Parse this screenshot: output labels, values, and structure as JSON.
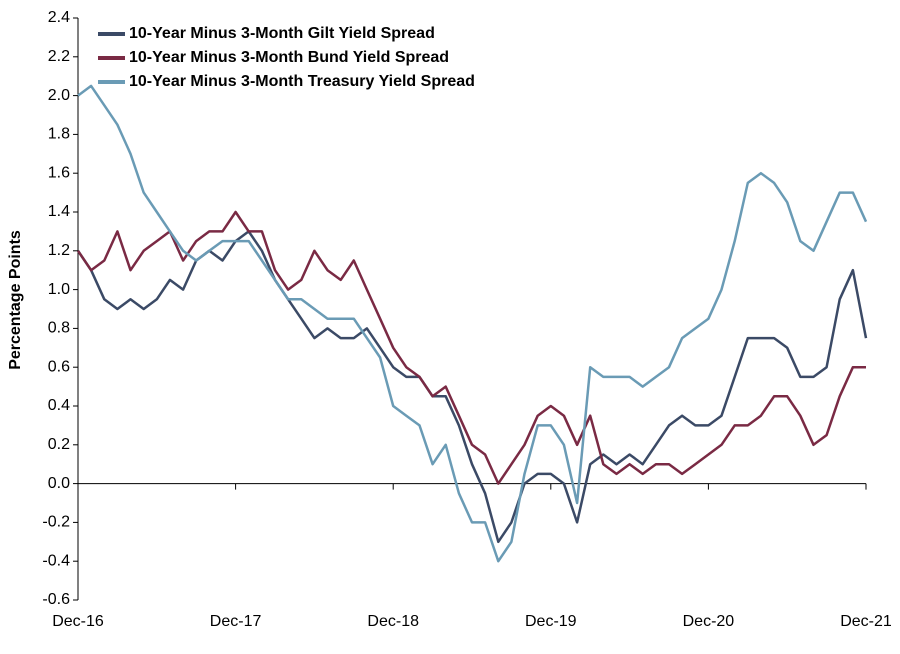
{
  "chart_data": {
    "type": "line",
    "ylabel": "Percentage Points",
    "x": [
      "2016-12",
      "2017-01",
      "2017-02",
      "2017-03",
      "2017-04",
      "2017-05",
      "2017-06",
      "2017-07",
      "2017-08",
      "2017-09",
      "2017-10",
      "2017-11",
      "2017-12",
      "2018-01",
      "2018-02",
      "2018-03",
      "2018-04",
      "2018-05",
      "2018-06",
      "2018-07",
      "2018-08",
      "2018-09",
      "2018-10",
      "2018-11",
      "2018-12",
      "2019-01",
      "2019-02",
      "2019-03",
      "2019-04",
      "2019-05",
      "2019-06",
      "2019-07",
      "2019-08",
      "2019-09",
      "2019-10",
      "2019-11",
      "2019-12",
      "2020-01",
      "2020-02",
      "2020-03",
      "2020-04",
      "2020-05",
      "2020-06",
      "2020-07",
      "2020-08",
      "2020-09",
      "2020-10",
      "2020-11",
      "2020-12",
      "2021-01",
      "2021-02",
      "2021-03",
      "2021-04",
      "2021-05",
      "2021-06",
      "2021-07",
      "2021-08",
      "2021-09",
      "2021-10",
      "2021-11",
      "2021-12"
    ],
    "series": [
      {
        "name": "10-Year Minus 3-Month Gilt Yield Spread",
        "color": "#3b4a66",
        "values": [
          1.2,
          1.1,
          0.95,
          0.9,
          0.95,
          0.9,
          0.95,
          1.05,
          1.0,
          1.15,
          1.2,
          1.15,
          1.25,
          1.3,
          1.2,
          1.05,
          0.95,
          0.85,
          0.75,
          0.8,
          0.75,
          0.75,
          0.8,
          0.7,
          0.6,
          0.55,
          0.55,
          0.45,
          0.45,
          0.3,
          0.1,
          -0.05,
          -0.3,
          -0.2,
          0.0,
          0.05,
          0.05,
          0.0,
          -0.2,
          0.1,
          0.15,
          0.1,
          0.15,
          0.1,
          0.2,
          0.3,
          0.35,
          0.3,
          0.3,
          0.35,
          0.55,
          0.75,
          0.75,
          0.75,
          0.7,
          0.55,
          0.55,
          0.6,
          0.95,
          1.1,
          0.75
        ]
      },
      {
        "name": "10-Year Minus 3-Month Bund Yield Spread",
        "color": "#7a2a44",
        "values": [
          1.2,
          1.1,
          1.15,
          1.3,
          1.1,
          1.2,
          1.25,
          1.3,
          1.15,
          1.25,
          1.3,
          1.3,
          1.4,
          1.3,
          1.3,
          1.1,
          1.0,
          1.05,
          1.2,
          1.1,
          1.05,
          1.15,
          1.0,
          0.85,
          0.7,
          0.6,
          0.55,
          0.45,
          0.5,
          0.35,
          0.2,
          0.15,
          0.0,
          0.1,
          0.2,
          0.35,
          0.4,
          0.35,
          0.2,
          0.35,
          0.1,
          0.05,
          0.1,
          0.05,
          0.1,
          0.1,
          0.05,
          0.1,
          0.15,
          0.2,
          0.3,
          0.3,
          0.35,
          0.45,
          0.45,
          0.35,
          0.2,
          0.25,
          0.45,
          0.6,
          0.6
        ]
      },
      {
        "name": "10-Year Minus 3-Month Treasury Yield Spread",
        "color": "#6a9bb5",
        "values": [
          2.0,
          2.05,
          1.95,
          1.85,
          1.7,
          1.5,
          1.4,
          1.3,
          1.2,
          1.15,
          1.2,
          1.25,
          1.25,
          1.25,
          1.15,
          1.05,
          0.95,
          0.95,
          0.9,
          0.85,
          0.85,
          0.85,
          0.75,
          0.65,
          0.4,
          0.35,
          0.3,
          0.1,
          0.2,
          -0.05,
          -0.2,
          -0.2,
          -0.4,
          -0.3,
          0.05,
          0.3,
          0.3,
          0.2,
          -0.1,
          0.6,
          0.55,
          0.55,
          0.55,
          0.5,
          0.55,
          0.6,
          0.75,
          0.8,
          0.85,
          1.0,
          1.25,
          1.55,
          1.6,
          1.55,
          1.45,
          1.25,
          1.2,
          1.35,
          1.5,
          1.5,
          1.35
        ]
      }
    ],
    "ylim": [
      -0.6,
      2.4
    ],
    "yticks": [
      -0.6,
      -0.4,
      -0.2,
      {
        "value": 0,
        "label": "0.0"
      },
      0.2,
      0.4,
      0.6,
      0.8,
      {
        "value": 1,
        "label": "1.0"
      },
      1.2,
      1.4,
      1.6,
      1.8,
      {
        "value": 2,
        "label": "2.0"
      },
      2.2,
      2.4
    ],
    "xlim": [
      "2016-12",
      "2021-12"
    ],
    "xticks": [
      {
        "value": "2016-12",
        "label": "Dec-16"
      },
      {
        "value": "2017-12",
        "label": "Dec-17"
      },
      {
        "value": "2018-12",
        "label": "Dec-18"
      },
      {
        "value": "2019-12",
        "label": "Dec-19"
      },
      {
        "value": "2020-12",
        "label": "Dec-20"
      },
      {
        "value": "2021-12",
        "label": "Dec-21"
      }
    ],
    "legend": "upper left"
  }
}
